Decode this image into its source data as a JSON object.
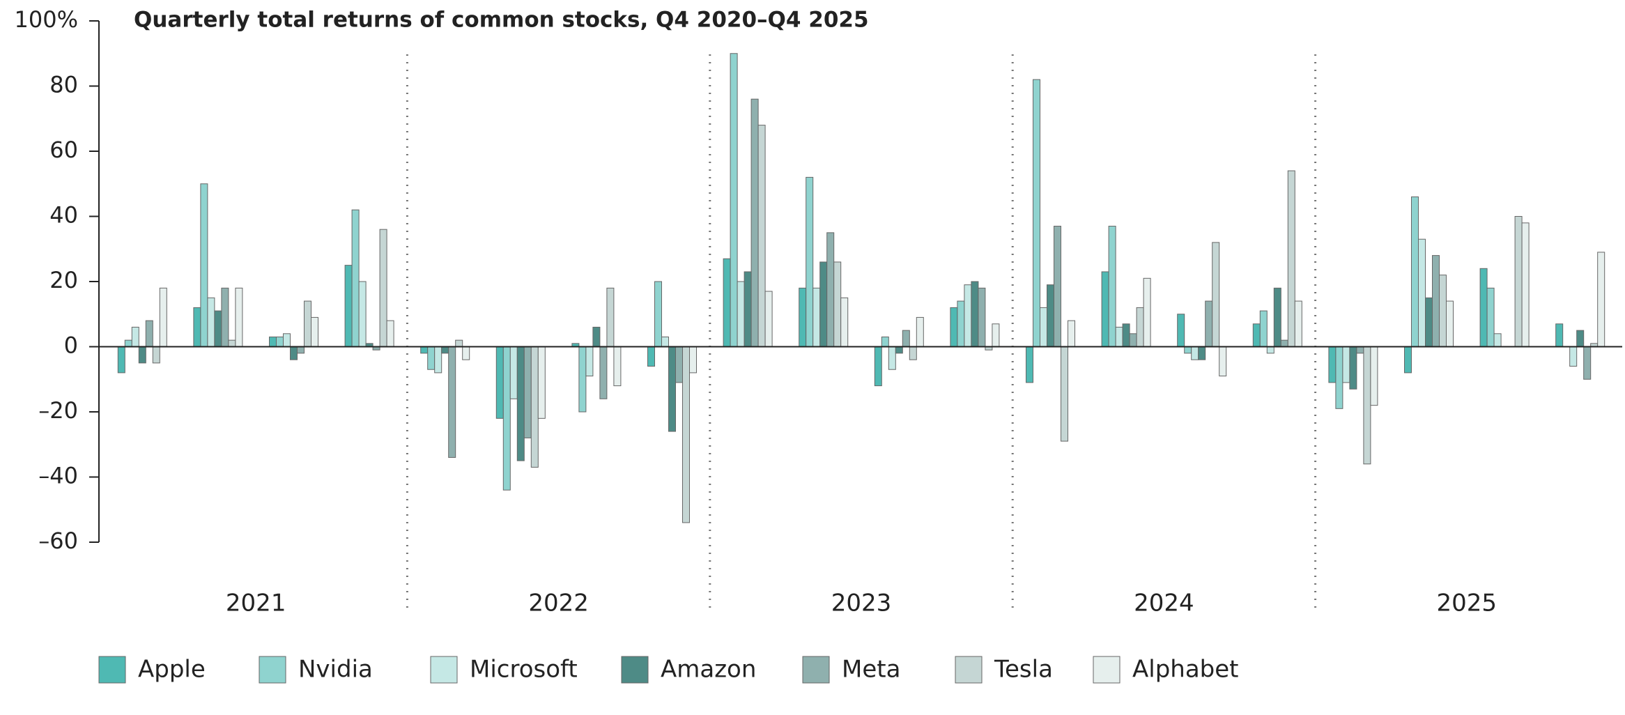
{
  "chart_data": {
    "type": "bar",
    "title": "Quarterly total returns of common stocks, Q4 2020–Q4 2025",
    "categories": [
      null,
      null,
      null,
      null,
      null,
      null,
      null,
      null,
      null,
      null,
      null,
      null,
      null,
      null,
      null,
      null,
      null,
      null,
      null,
      null
    ],
    "year_labels": [
      "2021",
      "2022",
      "2023",
      "2024",
      "2025"
    ],
    "ylim": [
      -60,
      100
    ],
    "yticks": [
      {
        "value": 100,
        "label": "100%"
      },
      80,
      60,
      40,
      20,
      0,
      {
        "value": -20,
        "label": "–20"
      },
      {
        "value": -40,
        "label": "–40"
      },
      {
        "value": -60,
        "label": "–60"
      }
    ],
    "series": [
      {
        "name": "Apple",
        "color": "#4fb9b3",
        "values": [
          -8,
          12,
          3,
          25,
          -2,
          -22,
          1,
          -6,
          27,
          18,
          -12,
          12,
          -11,
          23,
          10,
          7,
          -11,
          -8,
          24,
          7
        ]
      },
      {
        "name": "Nvidia",
        "color": "#8fd3cf",
        "values": [
          2,
          50,
          3,
          42,
          -7,
          -44,
          -20,
          20,
          90,
          52,
          3,
          14,
          82,
          37,
          -2,
          11,
          -19,
          46,
          18,
          0
        ]
      },
      {
        "name": "Microsoft",
        "color": "#c5e8e5",
        "values": [
          6,
          15,
          4,
          20,
          -8,
          -16,
          -9,
          3,
          20,
          18,
          -7,
          19,
          12,
          6,
          -4,
          -2,
          -11,
          33,
          4,
          -6
        ]
      },
      {
        "name": "Amazon",
        "color": "#4e8b86",
        "values": [
          -5,
          11,
          -4,
          1,
          -2,
          -35,
          6,
          -26,
          23,
          26,
          -2,
          20,
          19,
          7,
          -4,
          18,
          -13,
          15,
          0,
          5
        ]
      },
      {
        "name": "Meta",
        "color": "#8fb0ae",
        "values": [
          8,
          18,
          -2,
          -1,
          -34,
          -28,
          -16,
          -11,
          76,
          35,
          5,
          18,
          37,
          4,
          14,
          2,
          -2,
          28,
          0,
          -10
        ]
      },
      {
        "name": "Tesla",
        "color": "#c5d6d4",
        "values": [
          -5,
          2,
          14,
          36,
          2,
          -37,
          18,
          -54,
          68,
          26,
          -4,
          -1,
          -29,
          12,
          32,
          54,
          -36,
          22,
          40,
          1
        ]
      },
      {
        "name": "Alphabet",
        "color": "#e6efed",
        "values": [
          18,
          18,
          9,
          8,
          -4,
          -22,
          -12,
          -8,
          17,
          15,
          9,
          7,
          8,
          21,
          -9,
          14,
          -18,
          14,
          38,
          29
        ]
      }
    ]
  }
}
